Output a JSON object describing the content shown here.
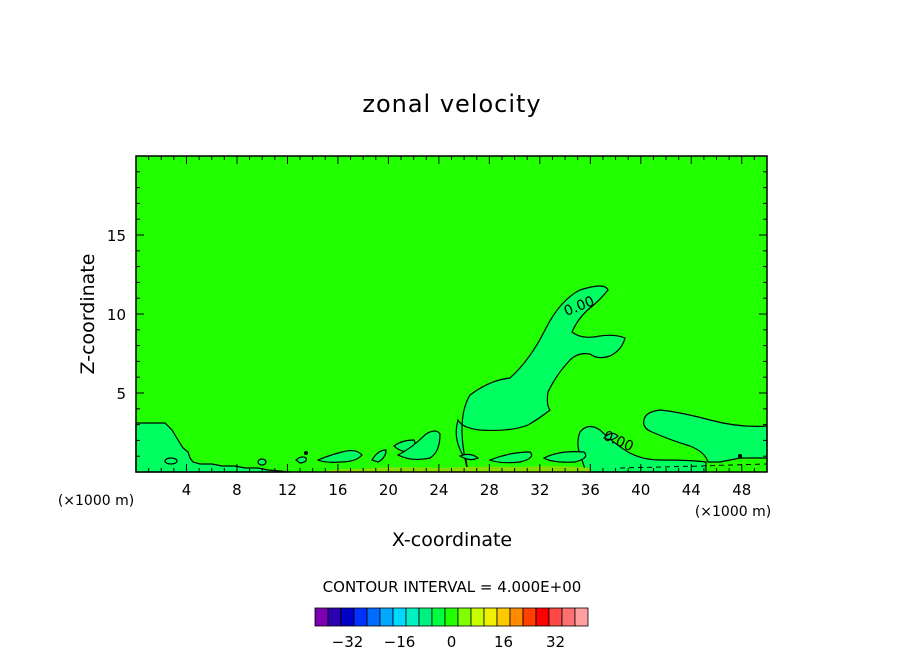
{
  "chart_data": {
    "type": "contour",
    "title": "zonal velocity",
    "xlabel": "X-coordinate",
    "ylabel": "Z-coordinate",
    "x_unit": "(×1000 m)",
    "x_unit_right": "(×1000 m)",
    "xlim": [
      0,
      50
    ],
    "ylim": [
      0,
      20
    ],
    "x_ticks": [
      4,
      8,
      12,
      16,
      20,
      24,
      28,
      32,
      36,
      40,
      44,
      48
    ],
    "y_ticks": [
      5,
      10,
      15
    ],
    "background_level_color": "#22ff00",
    "contour_labels": [
      {
        "text": "0.00",
        "x": 34.0,
        "z": 11.0
      },
      {
        "text": "0.00",
        "x": 38.0,
        "z": 1.5
      }
    ],
    "contour_interval_text": "CONTOUR INTERVAL = 4.000E+00",
    "colorbar": {
      "colors": [
        "#7a00b0",
        "#2a00b0",
        "#0000c8",
        "#0033ff",
        "#006cff",
        "#00a8ff",
        "#00d8ff",
        "#00f0c0",
        "#00f080",
        "#00ff40",
        "#22ff00",
        "#7fff00",
        "#c8ff00",
        "#f0f000",
        "#ffc800",
        "#ff8c00",
        "#ff4000",
        "#ff0000",
        "#ff4848",
        "#ff7070",
        "#ffa0a0"
      ],
      "tick_labels": [
        "-32",
        "-16",
        "0",
        "16",
        "32"
      ],
      "tick_values": [
        -32,
        -16,
        0,
        16,
        32
      ]
    },
    "regions": {
      "light_green_color": "#00ff60",
      "olive_color": "#88dd00"
    }
  }
}
